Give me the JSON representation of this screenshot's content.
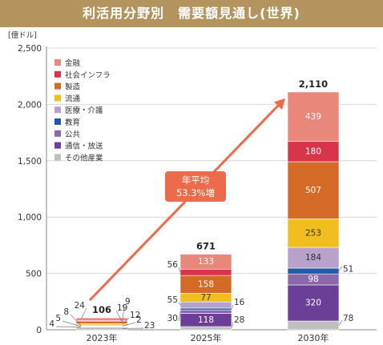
{
  "title": "利活用分野別　需要額見通し(世界)",
  "chart_data": {
    "type": "bar",
    "stacked": true,
    "unit": "[億ドル]",
    "ylim": [
      0,
      2500
    ],
    "yticks": [
      "0",
      "500",
      "1,000",
      "1,500",
      "2,000",
      "2,500"
    ],
    "grid": true,
    "legend_position": "top-left",
    "categories": [
      "2023年",
      "2025年",
      "2030年"
    ],
    "totals": [
      "106",
      "671",
      "2,110"
    ],
    "series": [
      {
        "name": "その他産業",
        "color": "#bfbfbf",
        "values": [
          23,
          28,
          78
        ],
        "labels": [
          "23",
          "28",
          "78"
        ]
      },
      {
        "name": "通信・放送",
        "color": "#6b3f97",
        "values": [
          4,
          118,
          320
        ],
        "labels": [
          "4",
          "118",
          "320"
        ]
      },
      {
        "name": "公共",
        "color": "#8b67ae",
        "values": [
          5,
          30,
          98
        ],
        "labels": [
          "5",
          "30",
          "98"
        ]
      },
      {
        "name": "教育",
        "color": "#1f5aa6",
        "values": [
          2,
          16,
          51
        ],
        "labels": [
          "2",
          "16",
          "51"
        ]
      },
      {
        "name": "医療・介護",
        "color": "#b8a2cc",
        "values": [
          8,
          55,
          184
        ],
        "labels": [
          "8",
          "55",
          "184"
        ]
      },
      {
        "name": "流通",
        "color": "#f2bd1e",
        "values": [
          12,
          77,
          253
        ],
        "labels": [
          "12",
          "77",
          "253"
        ]
      },
      {
        "name": "製造",
        "color": "#d36a25",
        "values": [
          19,
          158,
          507
        ],
        "labels": [
          "19",
          "158",
          "507"
        ]
      },
      {
        "name": "社会インフラ",
        "color": "#d7354c",
        "values": [
          9,
          56,
          180
        ],
        "labels": [
          "9",
          "56",
          "180"
        ]
      },
      {
        "name": "金融",
        "color": "#e8877a",
        "values": [
          24,
          133,
          439
        ],
        "labels": [
          "24",
          "133",
          "439"
        ]
      }
    ],
    "annotation": {
      "line1": "年平均",
      "line2": "53.3%増",
      "color": "#ec6b4b"
    }
  }
}
